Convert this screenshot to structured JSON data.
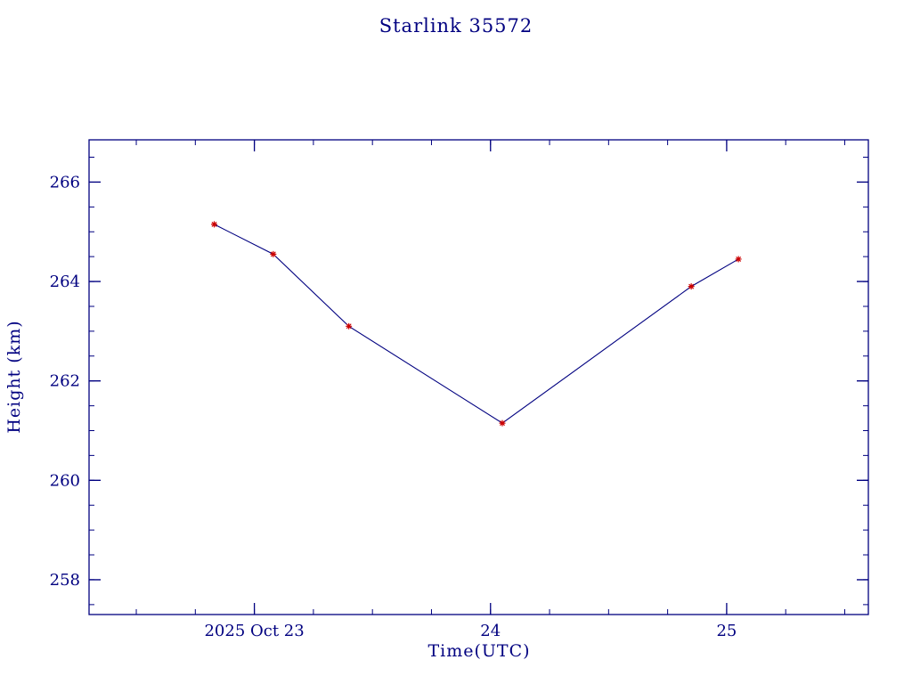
{
  "header": {
    "title": "Starlink 35572"
  },
  "chart_data": {
    "type": "line",
    "title": "Starlink 35572",
    "xlabel": "Time(UTC)",
    "ylabel": "Height (km)",
    "x": [
      22.83,
      23.08,
      23.4,
      24.05,
      24.85,
      25.05
    ],
    "y": [
      265.15,
      264.55,
      263.1,
      261.15,
      263.9,
      264.45
    ],
    "xlim": [
      22.3,
      25.6
    ],
    "ylim": [
      257.3,
      266.85
    ],
    "x_major_ticks": [
      23,
      24,
      25
    ],
    "x_tick_labels": [
      "2025 Oct 23",
      "24",
      "25"
    ],
    "x_minor_step": 0.25,
    "y_major_ticks": [
      258,
      260,
      262,
      264,
      266
    ],
    "y_tick_labels": [
      "258",
      "260",
      "262",
      "264",
      "266"
    ],
    "y_minor_step": 0.5,
    "grid": false,
    "legend": null,
    "line_color": "#000080",
    "marker_color": "#cc0000",
    "marker_style": "asterisk",
    "axis_color": "#000080",
    "text_color": "#000080"
  }
}
